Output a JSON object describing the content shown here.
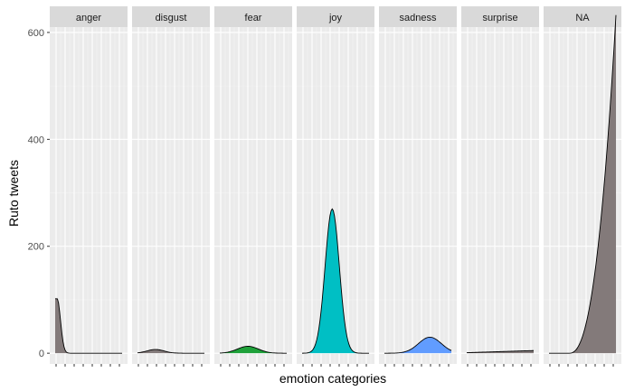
{
  "chart_data": {
    "type": "area",
    "xlabel": "emotion categories",
    "ylabel": "Ruto tweets",
    "ylim": [
      -20,
      610
    ],
    "yticks": [
      0,
      200,
      400,
      600
    ],
    "x_tick_labels_visible": false,
    "grid": true,
    "legend": "none",
    "facets": [
      {
        "label": "anger",
        "color": "#837a7a",
        "peak": 102,
        "profile": "decay-from-left"
      },
      {
        "label": "disgust",
        "color": "#837a7a",
        "peak": 7,
        "profile": "small-bump-left"
      },
      {
        "label": "fear",
        "color": "#1fa13a",
        "peak": 13,
        "profile": "low-bump-center"
      },
      {
        "label": "joy",
        "color": "#00bfc4",
        "peak": 270,
        "profile": "bell-center"
      },
      {
        "label": "sadness",
        "color": "#619cff",
        "peak": 30,
        "profile": "rising-bump-right"
      },
      {
        "label": "surprise",
        "color": "#837a7a",
        "peak": 5,
        "profile": "flat-rising"
      },
      {
        "label": "NA",
        "color": "#837a7a",
        "peak": 590,
        "profile": "rising-to-right"
      }
    ]
  }
}
